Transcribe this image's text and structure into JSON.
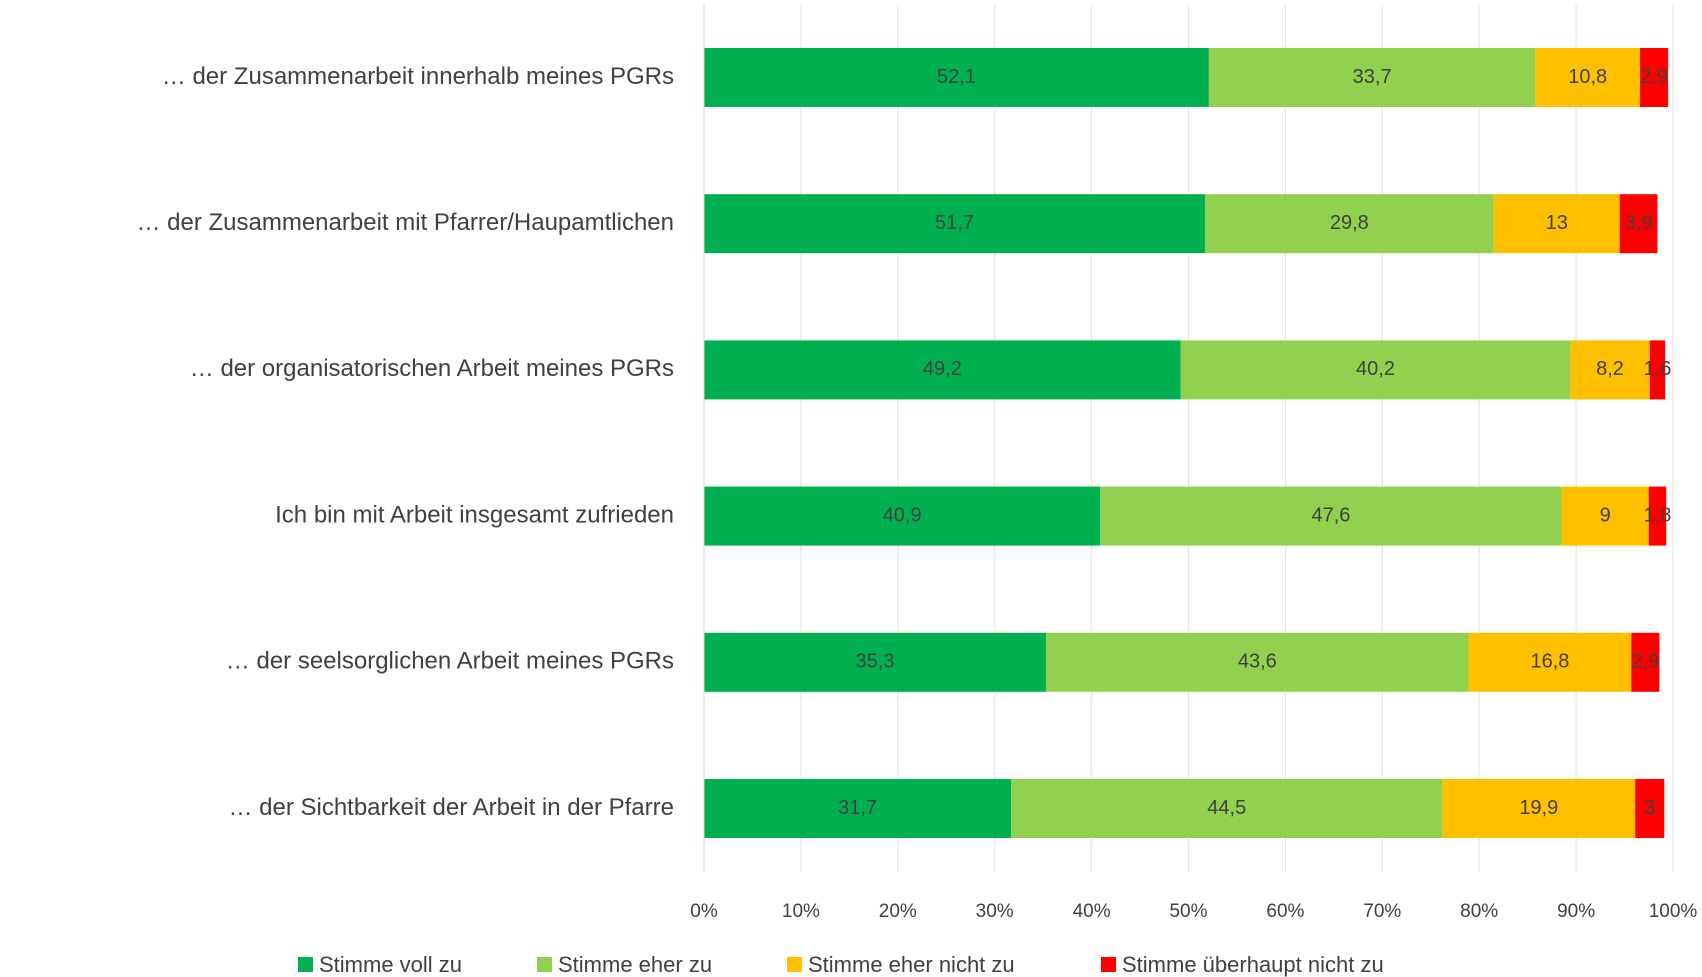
{
  "chart_data": {
    "type": "bar",
    "orientation": "horizontal",
    "stacked": true,
    "categories": [
      "… der Zusammenarbeit innerhalb meines PGRs",
      "… der Zusammenarbeit mit Pfarrer/Haupamtlichen",
      "… der organisatorischen Arbeit meines PGRs",
      "Ich bin mit Arbeit insgesamt zufrieden",
      "… der seelsorglichen Arbeit meines PGRs",
      "… der Sichtbarkeit der Arbeit in der Pfarre"
    ],
    "series": [
      {
        "name": "Stimme voll zu",
        "color": "#00b050",
        "values": [
          52.1,
          51.7,
          49.2,
          40.9,
          35.3,
          31.7
        ],
        "value_labels": [
          "52,1",
          "51,7",
          "49,2",
          "40,9",
          "35,3",
          "31,7"
        ]
      },
      {
        "name": "Stimme eher zu",
        "color": "#92d050",
        "values": [
          33.7,
          29.8,
          40.2,
          47.6,
          43.6,
          44.5
        ],
        "value_labels": [
          "33,7",
          "29,8",
          "40,2",
          "47,6",
          "43,6",
          "44,5"
        ]
      },
      {
        "name": "Stimme eher nicht zu",
        "color": "#ffc000",
        "values": [
          10.8,
          13,
          8.2,
          9,
          16.8,
          19.9
        ],
        "value_labels": [
          "10,8",
          "13",
          "8,2",
          "9",
          "16,8",
          "19,9"
        ]
      },
      {
        "name": "Stimme überhaupt nicht zu",
        "color": "#ff0000",
        "values": [
          2.9,
          3.9,
          1.6,
          1.8,
          2.9,
          3
        ],
        "value_labels": [
          "2,9",
          "3,9",
          "1,6",
          "1,8",
          "2,9",
          "3"
        ]
      }
    ],
    "xlim": [
      0,
      100
    ],
    "xticks": [
      {
        "value": 0,
        "label": "0%"
      },
      {
        "value": 10,
        "label": "10%"
      },
      {
        "value": 20,
        "label": "20%"
      },
      {
        "value": 30,
        "label": "30%"
      },
      {
        "value": 40,
        "label": "40%"
      },
      {
        "value": 50,
        "label": "50%"
      },
      {
        "value": 60,
        "label": "60%"
      },
      {
        "value": 70,
        "label": "70%"
      },
      {
        "value": 80,
        "label": "80%"
      },
      {
        "value": 90,
        "label": "90%"
      },
      {
        "value": 100,
        "label": "100%"
      }
    ],
    "grid": true,
    "legend": "bottom"
  }
}
